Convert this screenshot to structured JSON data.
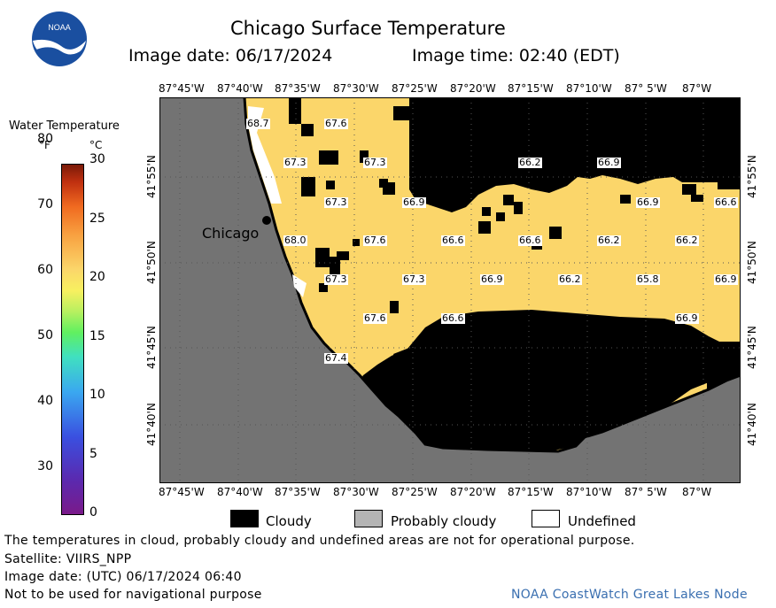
{
  "header": {
    "title": "Chicago Surface Temperature",
    "image_date": "Image date: 06/17/2024",
    "image_time": "Image time: 02:40 (EDT)"
  },
  "logo": {
    "text": "NOAA"
  },
  "legend": {
    "title": "Water Temperature",
    "unit_f": "°F",
    "unit_c": "°C",
    "f_ticks": [
      "30",
      "40",
      "50",
      "60",
      "70",
      "80"
    ],
    "c_ticks": [
      "0",
      "5",
      "10",
      "15",
      "20",
      "25",
      "30"
    ]
  },
  "axes": {
    "lon_ticks": [
      "87°45'W",
      "87°40'W",
      "87°35'W",
      "87°30'W",
      "87°25'W",
      "87°20'W",
      "87°15'W",
      "87°10'W",
      "87° 5'W",
      "87°W"
    ],
    "lat_ticks": [
      "41°55'N",
      "41°50'N",
      "41°45'N",
      "41°40'N"
    ]
  },
  "map": {
    "city": "Chicago",
    "temperature_labels": [
      "68.7",
      "67.6",
      "67.3",
      "67.3",
      "66.2",
      "66.9",
      "67.3",
      "66.9",
      "66.9",
      "66.6",
      "68.0",
      "67.6",
      "66.6",
      "66.6",
      "66.2",
      "66.2",
      "67.3",
      "67.3",
      "66.9",
      "66.2",
      "65.8",
      "66.9",
      "67.6",
      "66.6",
      "66.9",
      "67.4"
    ],
    "colors": {
      "land": "#737373",
      "water": "#fbd66a",
      "cloud": "#000000",
      "undefined": "#ffffff",
      "probably_cloudy": "#b4b4b4"
    }
  },
  "key": {
    "cloudy": "Cloudy",
    "probably_cloudy": "Probably cloudy",
    "undefined": "Undefined"
  },
  "footer": {
    "line1": "The temperatures in cloud, probably cloudy and undefined areas are not for operational purpose.",
    "line2": "Satellite: VIIRS_NPP",
    "line3": "Image date: (UTC) 06/17/2024  06:40",
    "line4": "Not to be used for navigational purpose",
    "credit": "NOAA CoastWatch Great Lakes Node"
  }
}
